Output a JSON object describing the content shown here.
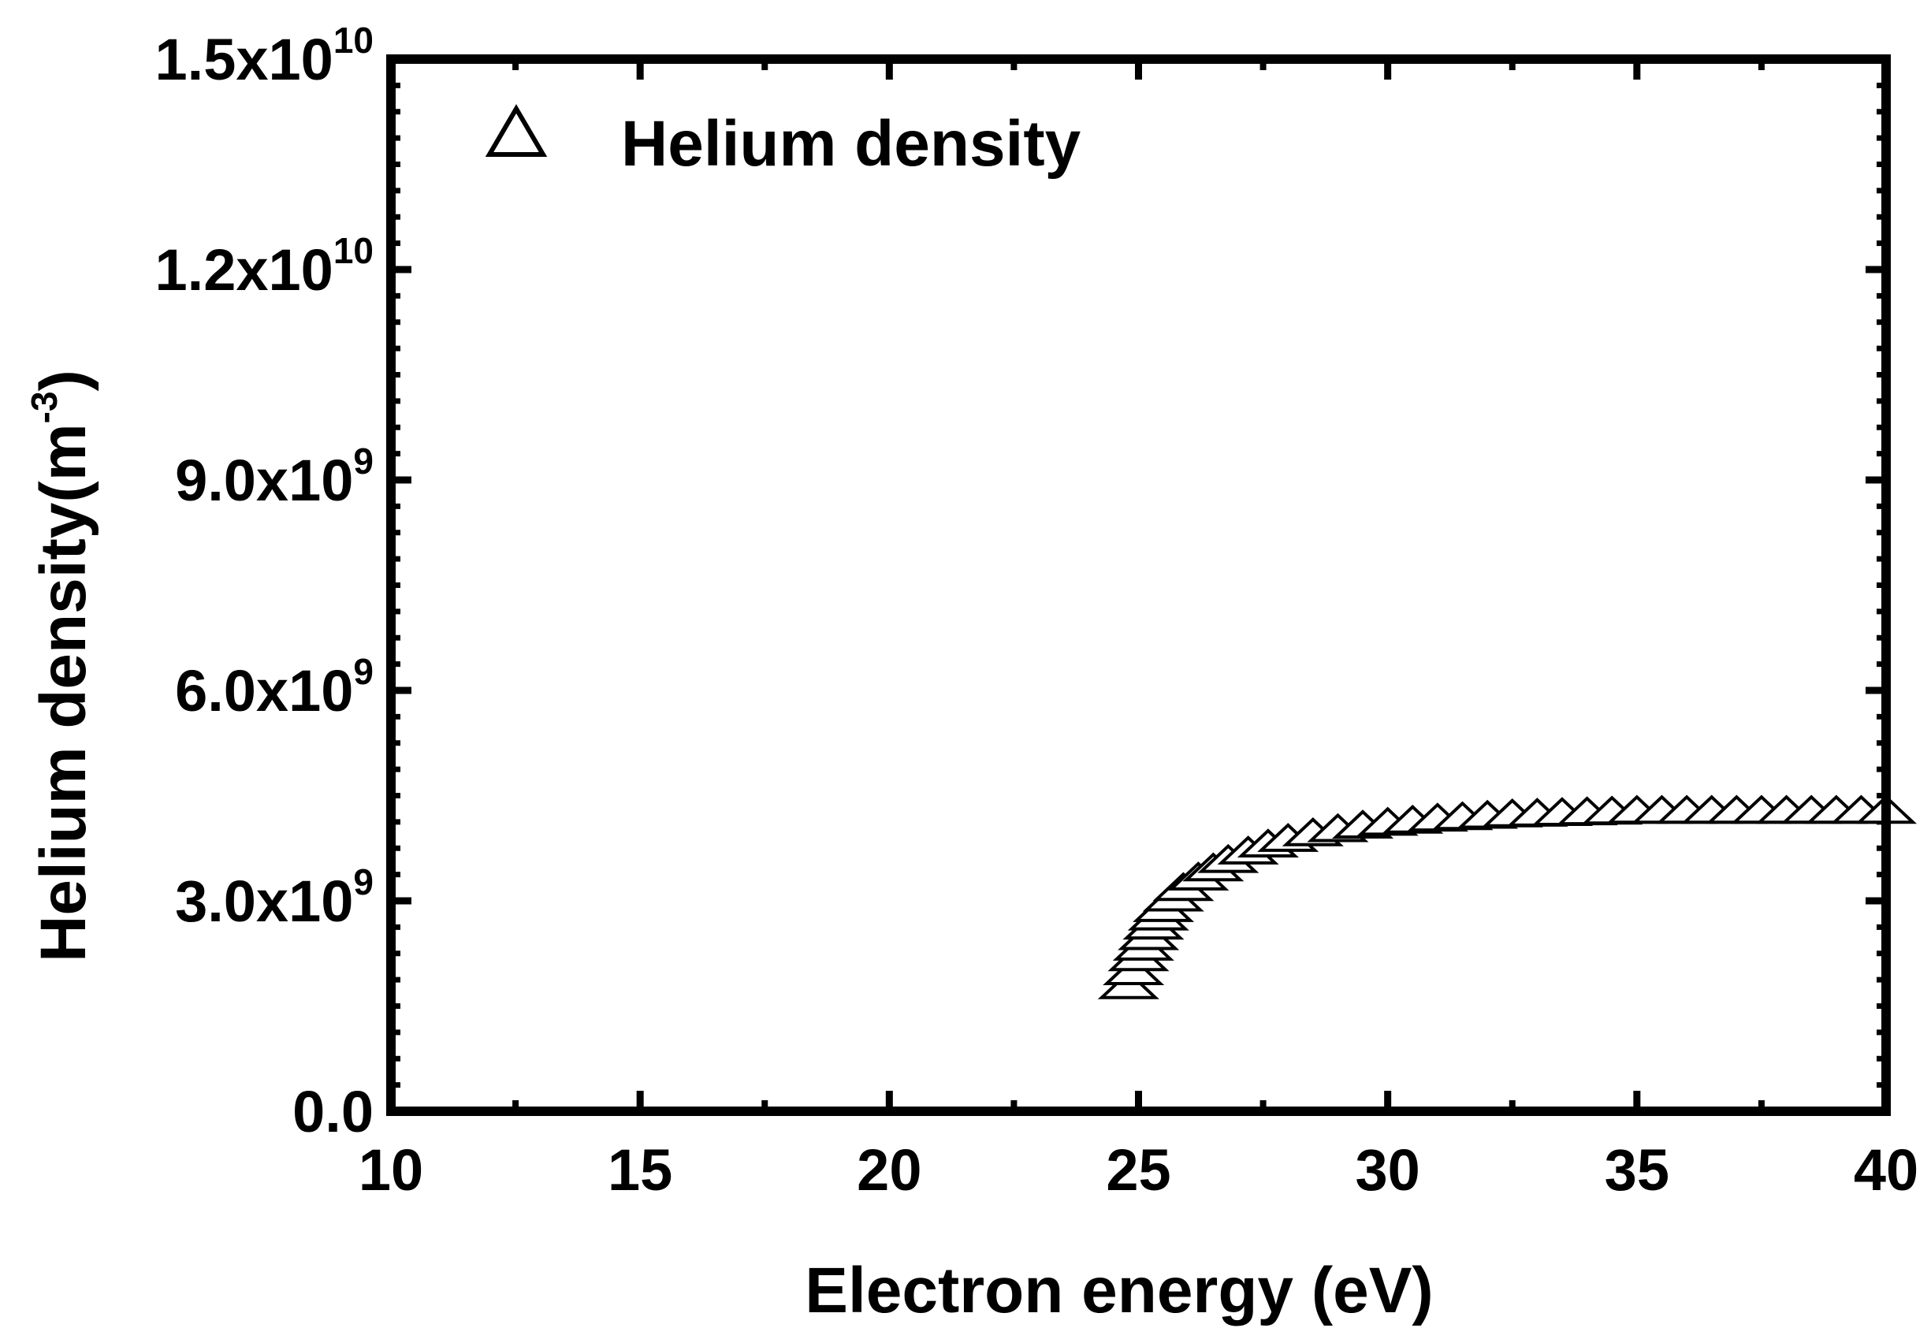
{
  "chart_data": {
    "type": "scatter",
    "title": "",
    "xlabel": "Electron energy (eV)",
    "ylabel": {
      "base": "Helium density(m",
      "sup": "-3",
      "close": ")"
    },
    "xlim": [
      10,
      40
    ],
    "ylim": [
      0,
      15000000000
    ],
    "x_ticks": [
      {
        "value": 10,
        "label": "10"
      },
      {
        "value": 15,
        "label": "15"
      },
      {
        "value": 20,
        "label": "20"
      },
      {
        "value": 25,
        "label": "25"
      },
      {
        "value": 30,
        "label": "30"
      },
      {
        "value": 35,
        "label": "35"
      },
      {
        "value": 40,
        "label": "40"
      }
    ],
    "y_ticks": [
      {
        "value": 0,
        "mantissa": "0.0",
        "exp": ""
      },
      {
        "value": 3000000000,
        "mantissa": "3.0x10",
        "exp": "9"
      },
      {
        "value": 6000000000,
        "mantissa": "6.0x10",
        "exp": "9"
      },
      {
        "value": 9000000000,
        "mantissa": "9.0x10",
        "exp": "9"
      },
      {
        "value": 12000000000,
        "mantissa": "1.2x10",
        "exp": "10"
      },
      {
        "value": 15000000000,
        "mantissa": "1.5x10",
        "exp": "10"
      }
    ],
    "grid": false,
    "legend_position": "top-left",
    "marker": "open-triangle",
    "series": [
      {
        "name": "Helium density",
        "x": [
          24.8,
          24.9,
          25.0,
          25.1,
          25.2,
          25.3,
          25.4,
          25.5,
          25.7,
          25.9,
          26.2,
          26.5,
          26.8,
          27.2,
          27.6,
          28.0,
          28.5,
          29.0,
          29.5,
          30.0,
          30.5,
          31.0,
          31.5,
          32.0,
          32.5,
          33.0,
          33.5,
          34.0,
          34.5,
          35.0,
          35.5,
          36.0,
          36.5,
          37.0,
          37.5,
          38.0,
          38.5,
          39.0,
          39.5,
          40.0
        ],
        "y": [
          1800000000,
          2000000000,
          2200000000,
          2350000000,
          2500000000,
          2650000000,
          2780000000,
          2900000000,
          3050000000,
          3200000000,
          3350000000,
          3480000000,
          3600000000,
          3720000000,
          3820000000,
          3900000000,
          3980000000,
          4040000000,
          4090000000,
          4130000000,
          4160000000,
          4190000000,
          4210000000,
          4230000000,
          4250000000,
          4260000000,
          4270000000,
          4280000000,
          4290000000,
          4300000000,
          4300000000,
          4300000000,
          4300000000,
          4300000000,
          4300000000,
          4300000000,
          4300000000,
          4300000000,
          4300000000,
          4300000000
        ]
      }
    ]
  },
  "colors": {
    "axis": "#000000",
    "marker_stroke": "#000000",
    "marker_fill": "#ffffff"
  }
}
